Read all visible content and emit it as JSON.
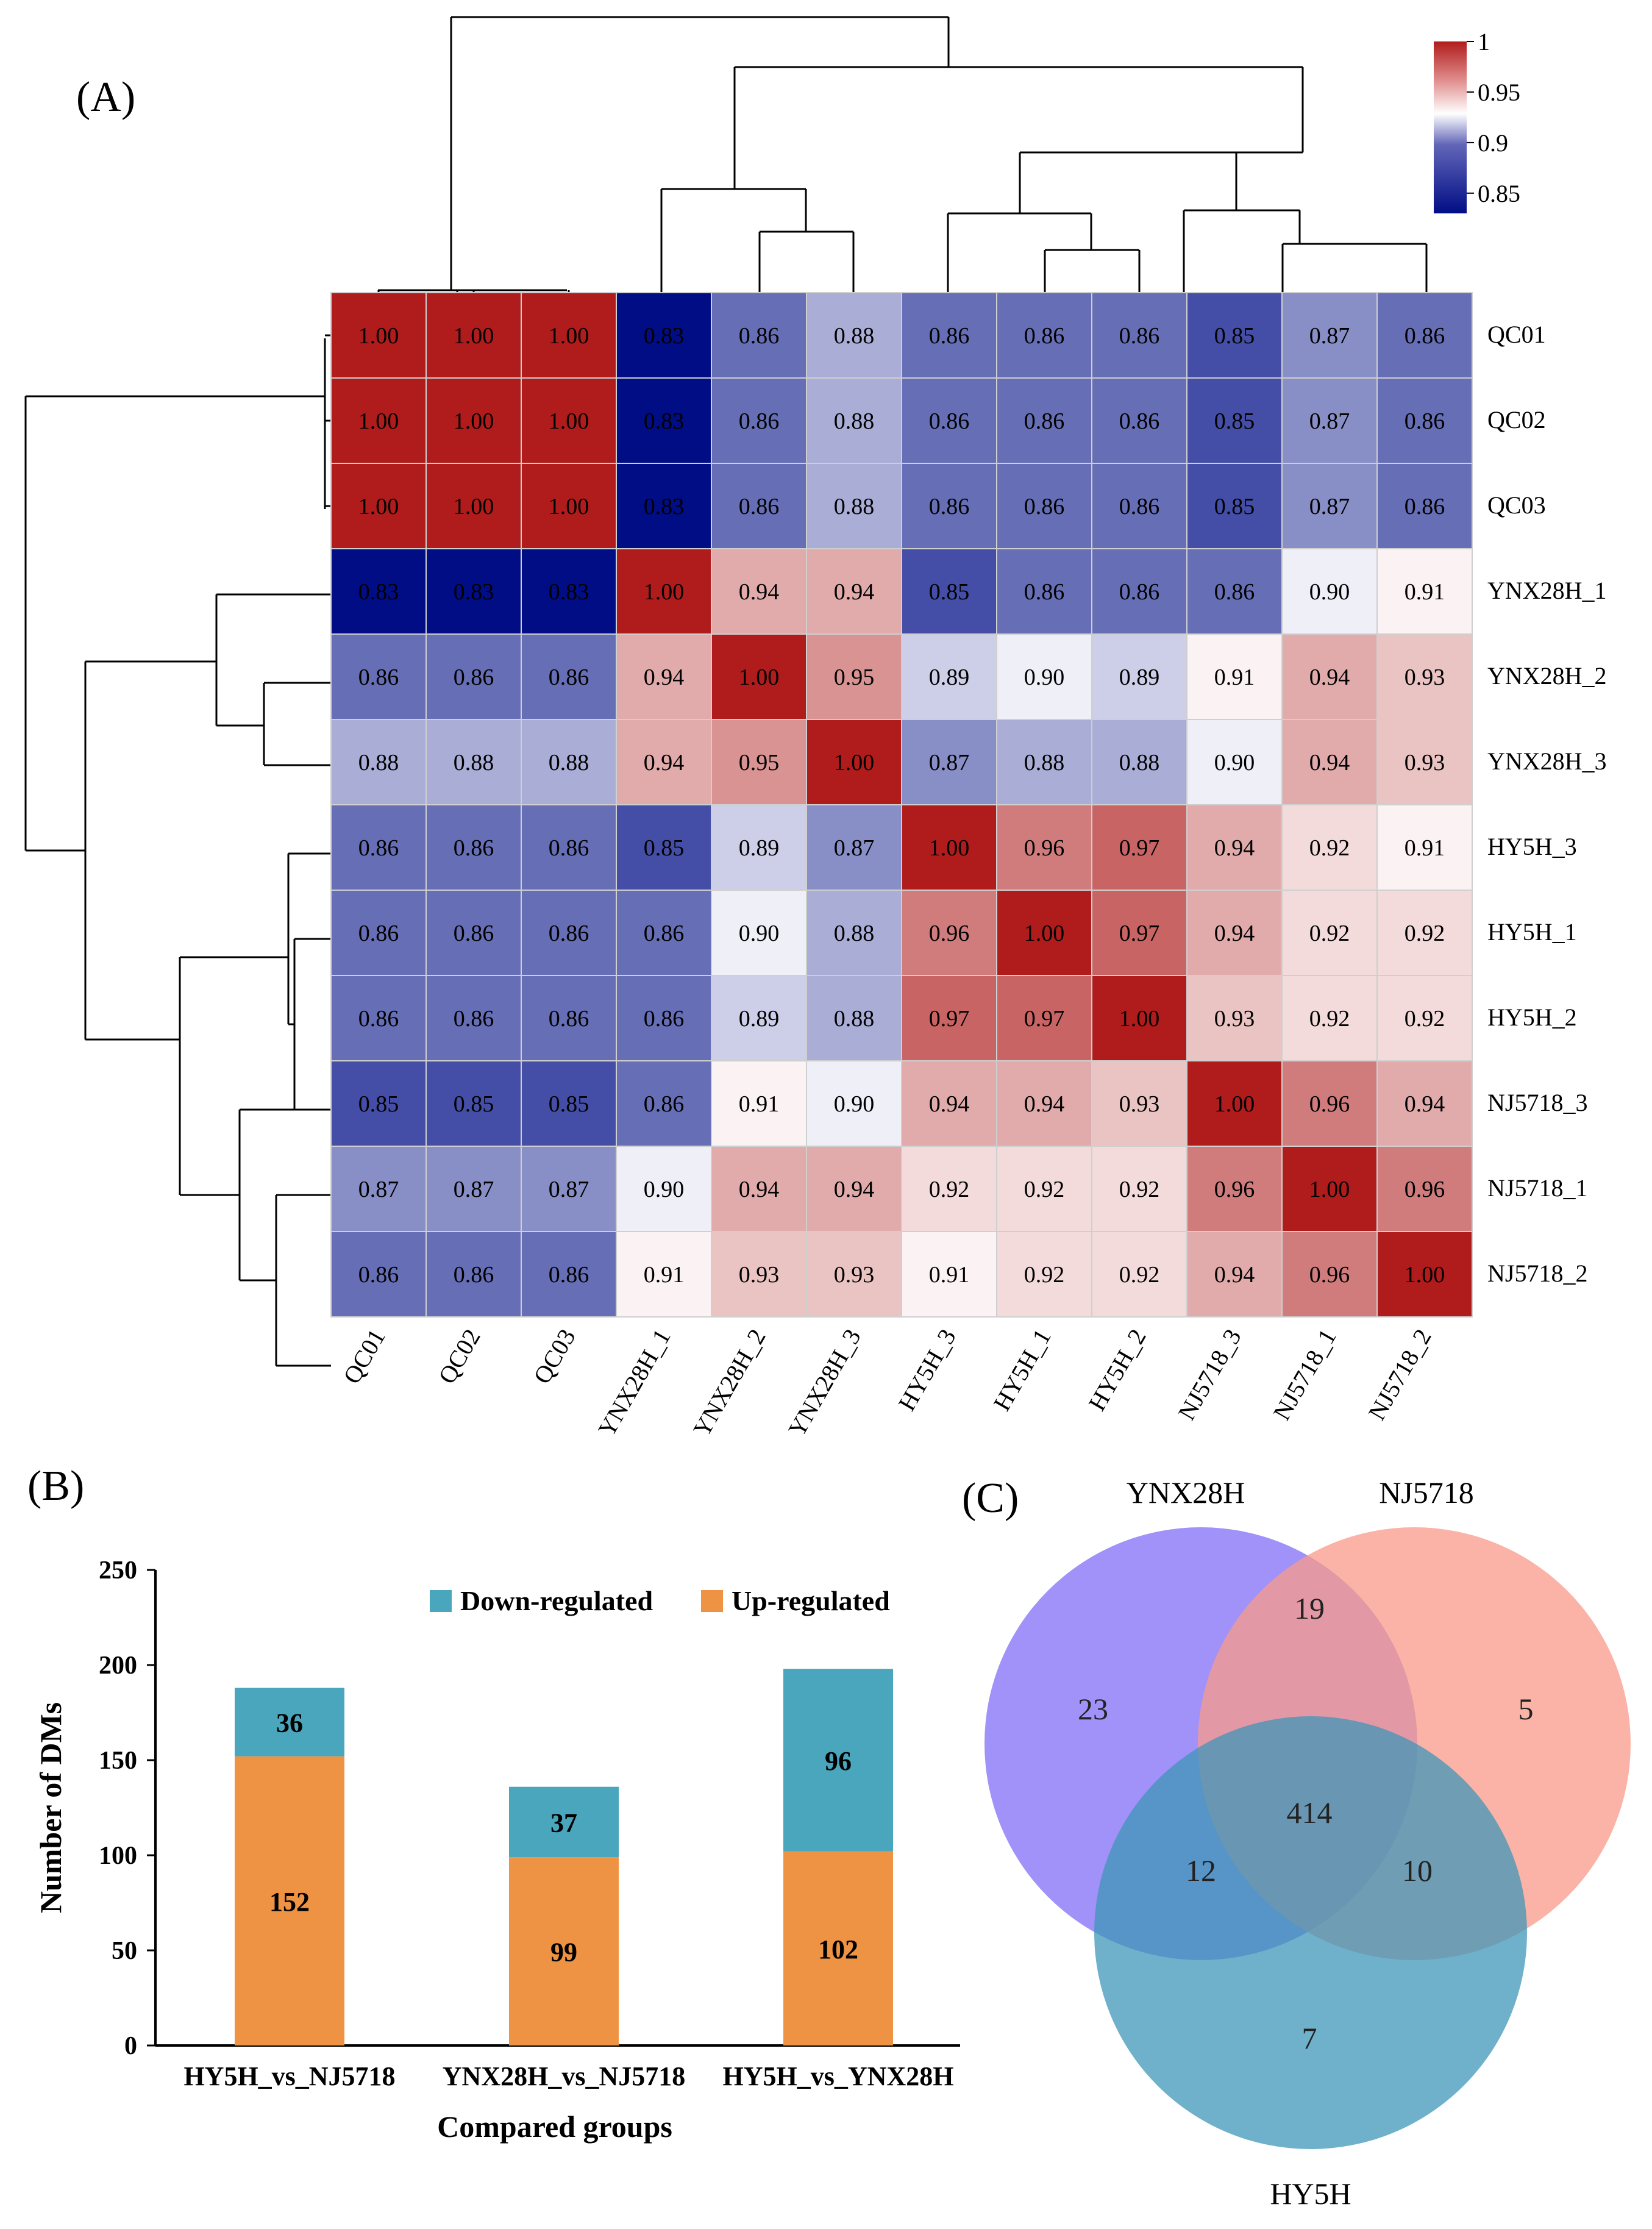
{
  "panels": {
    "a_label": "(A)",
    "b_label": "(B)",
    "c_label": "(C)"
  },
  "colors": {
    "low": "#000d85",
    "mid": "#ffffff",
    "high": "#b01c1c",
    "down": "#4aa6bd",
    "up": "#ee9244",
    "venn_ynx": "#8f7ff7",
    "venn_nj": "#fa9a8a",
    "venn_hy": "#3f95b8"
  },
  "chart_data": [
    {
      "type": "heatmap",
      "title": "",
      "rows": [
        "QC01",
        "QC02",
        "QC03",
        "YNX28H_1",
        "YNX28H_2",
        "YNX28H_3",
        "HY5H_3",
        "HY5H_1",
        "HY5H_2",
        "NJ5718_3",
        "NJ5718_1",
        "NJ5718_2"
      ],
      "columns": [
        "QC01",
        "QC02",
        "QC03",
        "YNX28H_1",
        "YNX28H_2",
        "YNX28H_3",
        "HY5H_3",
        "HY5H_1",
        "HY5H_2",
        "NJ5718_3",
        "NJ5718_1",
        "NJ5718_2"
      ],
      "values": [
        [
          "1.00",
          "1.00",
          "1.00",
          "0.83",
          "0.86",
          "0.88",
          "0.86",
          "0.86",
          "0.86",
          "0.85",
          "0.87",
          "0.86"
        ],
        [
          "1.00",
          "1.00",
          "1.00",
          "0.83",
          "0.86",
          "0.88",
          "0.86",
          "0.86",
          "0.86",
          "0.85",
          "0.87",
          "0.86"
        ],
        [
          "1.00",
          "1.00",
          "1.00",
          "0.83",
          "0.86",
          "0.88",
          "0.86",
          "0.86",
          "0.86",
          "0.85",
          "0.87",
          "0.86"
        ],
        [
          "0.83",
          "0.83",
          "0.83",
          "1.00",
          "0.94",
          "0.94",
          "0.85",
          "0.86",
          "0.86",
          "0.86",
          "0.90",
          "0.91"
        ],
        [
          "0.86",
          "0.86",
          "0.86",
          "0.94",
          "1.00",
          "0.95",
          "0.89",
          "0.90",
          "0.89",
          "0.91",
          "0.94",
          "0.93"
        ],
        [
          "0.88",
          "0.88",
          "0.88",
          "0.94",
          "0.95",
          "1.00",
          "0.87",
          "0.88",
          "0.88",
          "0.90",
          "0.94",
          "0.93"
        ],
        [
          "0.86",
          "0.86",
          "0.86",
          "0.85",
          "0.89",
          "0.87",
          "1.00",
          "0.96",
          "0.97",
          "0.94",
          "0.92",
          "0.91"
        ],
        [
          "0.86",
          "0.86",
          "0.86",
          "0.86",
          "0.90",
          "0.88",
          "0.96",
          "1.00",
          "0.97",
          "0.94",
          "0.92",
          "0.92"
        ],
        [
          "0.86",
          "0.86",
          "0.86",
          "0.86",
          "0.89",
          "0.88",
          "0.97",
          "0.97",
          "1.00",
          "0.93",
          "0.92",
          "0.92"
        ],
        [
          "0.85",
          "0.85",
          "0.85",
          "0.86",
          "0.91",
          "0.90",
          "0.94",
          "0.94",
          "0.93",
          "1.00",
          "0.96",
          "0.94"
        ],
        [
          "0.87",
          "0.87",
          "0.87",
          "0.90",
          "0.94",
          "0.94",
          "0.92",
          "0.92",
          "0.92",
          "0.96",
          "1.00",
          "0.96"
        ],
        [
          "0.86",
          "0.86",
          "0.86",
          "0.91",
          "0.93",
          "0.93",
          "0.91",
          "0.92",
          "0.92",
          "0.94",
          "0.96",
          "1.00"
        ]
      ],
      "colorbar": {
        "range": [
          0.83,
          1.0
        ],
        "ticks": [
          "1",
          "0.95",
          "0.9",
          "0.85"
        ]
      }
    },
    {
      "type": "bar",
      "stacked": true,
      "categories": [
        "HY5H_vs_NJ5718",
        "YNX28H_vs_NJ5718",
        "HY5H_vs_YNX28H"
      ],
      "series": [
        {
          "name": "Up-regulated",
          "values": [
            152,
            99,
            102
          ]
        },
        {
          "name": "Down-regulated",
          "values": [
            36,
            37,
            96
          ]
        }
      ],
      "legend": [
        "Down-regulated",
        "Up-regulated"
      ],
      "xlabel": "Compared groups",
      "ylabel": "Number of DMs",
      "ylim": [
        0,
        250
      ],
      "yticks": [
        "0",
        "50",
        "100",
        "150",
        "200",
        "250"
      ]
    },
    {
      "type": "venn",
      "sets": [
        "YNX28H",
        "NJ5718",
        "HY5H"
      ],
      "regions": {
        "ynx_only": "23",
        "nj_only": "5",
        "hy_only": "7",
        "ynx_nj": "19",
        "ynx_hy": "12",
        "nj_hy": "10",
        "all": "414"
      }
    }
  ]
}
